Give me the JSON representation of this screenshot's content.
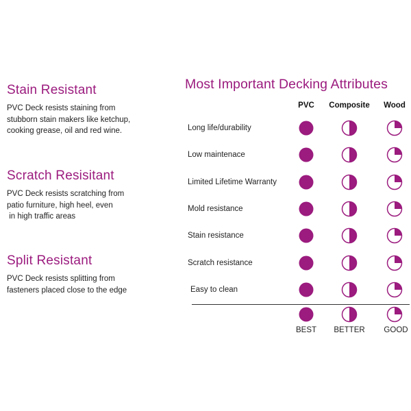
{
  "features": [
    {
      "heading": "Stain Resistant",
      "lines": [
        "PVC Deck resists staining from",
        "stubborn stain makers like ketchup,",
        "cooking grease, oil and red wine."
      ]
    },
    {
      "heading": "Scratch Resisitant",
      "lines": [
        "PVC Deck resists scratching from",
        "patio furniture, high heel, even",
        " in high traffic areas"
      ]
    },
    {
      "heading": "Split Resistant",
      "lines": [
        "PVC Deck resists splitting from",
        "fasteners placed close to the edge"
      ]
    }
  ],
  "attributes": {
    "title": "Most Important Decking Attributes",
    "columns": [
      "PVC",
      "Composite",
      "Wood"
    ],
    "rows": [
      {
        "label": "Long life/durability",
        "ratings": [
          "best",
          "better",
          "good"
        ]
      },
      {
        "label": "Low maintenace",
        "ratings": [
          "best",
          "better",
          "good"
        ]
      },
      {
        "label": "Limited Lifetime Warranty",
        "ratings": [
          "best",
          "better",
          "good"
        ]
      },
      {
        "label": "Mold resistance",
        "ratings": [
          "best",
          "better",
          "good"
        ]
      },
      {
        "label": "Stain resistance",
        "ratings": [
          "best",
          "better",
          "good"
        ]
      },
      {
        "label": "Scratch resistance",
        "ratings": [
          "best",
          "better",
          "good"
        ]
      },
      {
        "label": "Easy to clean",
        "ratings": [
          "best",
          "better",
          "good"
        ]
      }
    ]
  },
  "legend": [
    {
      "level": "best",
      "label": "BEST"
    },
    {
      "level": "better",
      "label": "BETTER"
    },
    {
      "level": "good",
      "label": "GOOD"
    }
  ],
  "rating_fill": {
    "best": 1.0,
    "better": 0.5,
    "good": 0.25
  },
  "colors": {
    "accent": "#9b1b7e",
    "text": "#222222",
    "background": "#ffffff"
  }
}
